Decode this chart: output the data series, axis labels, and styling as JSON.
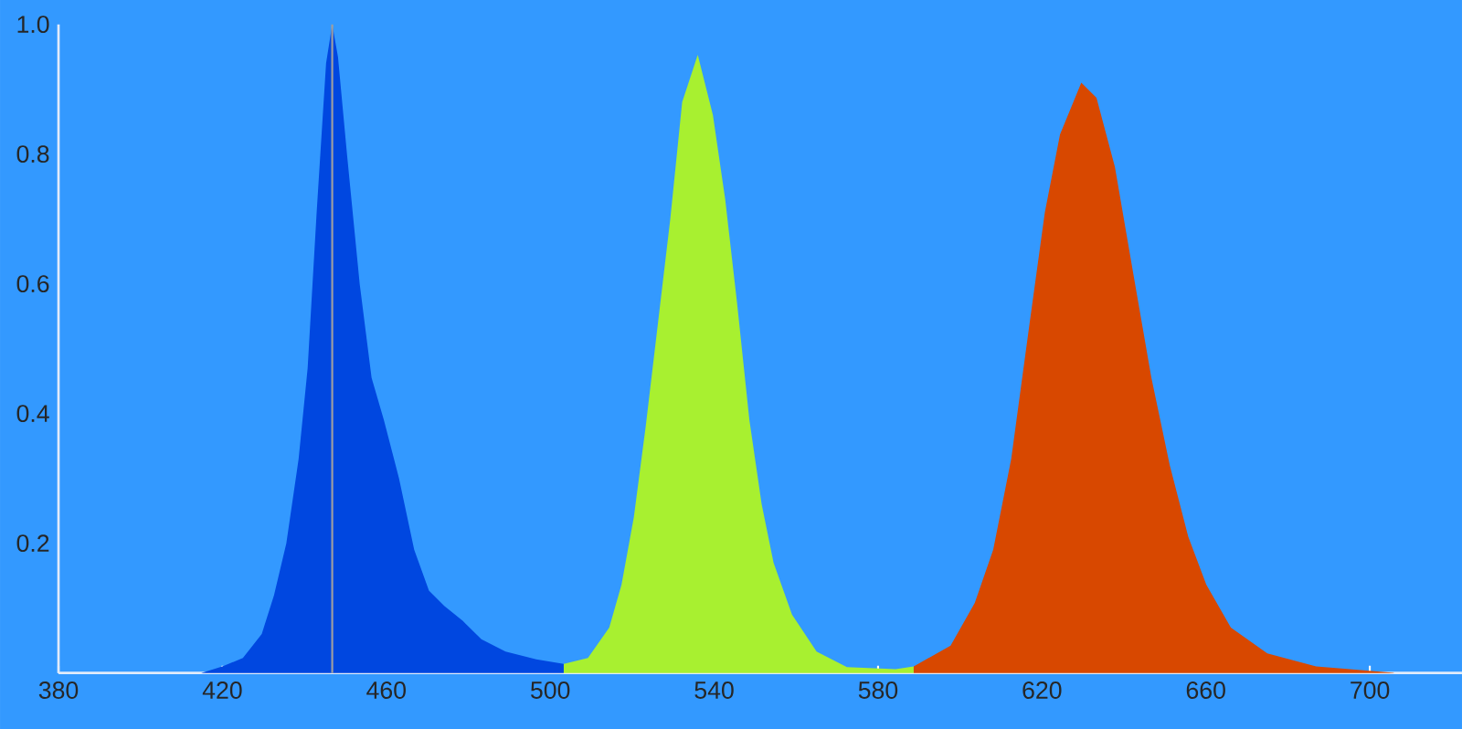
{
  "chart_data": {
    "type": "area",
    "xlim": [
      380,
      722.5
    ],
    "ylim": [
      0,
      1.0
    ],
    "xticks": [
      380,
      420,
      460,
      500,
      540,
      580,
      620,
      660,
      700
    ],
    "yticks": [
      0.2,
      0.4,
      0.6,
      0.8,
      {
        "value": 1.0,
        "label": "1.0"
      }
    ],
    "grid": false,
    "series": [
      {
        "color": "#0047e0",
        "x": [
          414.8,
          420,
          425,
          429.6,
          432.6,
          435.6,
          438.6,
          440.8,
          443,
          445.3,
          446.8,
          448.2,
          450.4,
          453.5,
          456.4,
          459.4,
          463.1,
          466.8,
          470.4,
          474.2,
          478.7,
          483.2,
          489.1,
          496.6,
          503.3
        ],
        "values": [
          0,
          0.01,
          0.023,
          0.06,
          0.12,
          0.2,
          0.33,
          0.47,
          0.71,
          0.94,
          1.0,
          0.95,
          0.8,
          0.6,
          0.455,
          0.39,
          0.3,
          0.19,
          0.127,
          0.103,
          0.08,
          0.052,
          0.033,
          0.021,
          0.014
        ]
      },
      {
        "color": "#a8f030",
        "x": [
          503.3,
          509.2,
          514.4,
          517.4,
          520.4,
          523.3,
          526.3,
          529.3,
          532.2,
          536,
          539.7,
          542.7,
          545.6,
          548.6,
          551.6,
          554.5,
          559,
          565,
          572.4,
          584.3,
          588.7
        ],
        "values": [
          0.014,
          0.023,
          0.07,
          0.136,
          0.24,
          0.38,
          0.54,
          0.7,
          0.88,
          0.953,
          0.86,
          0.73,
          0.57,
          0.39,
          0.26,
          0.17,
          0.09,
          0.033,
          0.009,
          0.006,
          0.01
        ]
      },
      {
        "color": "#d84800",
        "x": [
          588.7,
          597.7,
          603.6,
          608.1,
          612.5,
          617,
          620.7,
          624.4,
          629.6,
          633.3,
          637.8,
          642.3,
          646.7,
          651.2,
          655.7,
          660.1,
          666.1,
          675,
          686.9,
          706.2
        ],
        "values": [
          0.01,
          0.042,
          0.108,
          0.19,
          0.33,
          0.54,
          0.71,
          0.83,
          0.91,
          0.887,
          0.78,
          0.615,
          0.455,
          0.32,
          0.21,
          0.136,
          0.07,
          0.03,
          0.01,
          0
        ]
      }
    ],
    "ref_lines": [
      {
        "axis": "x",
        "value": 446.8,
        "color": "#a0a0a0"
      }
    ]
  }
}
